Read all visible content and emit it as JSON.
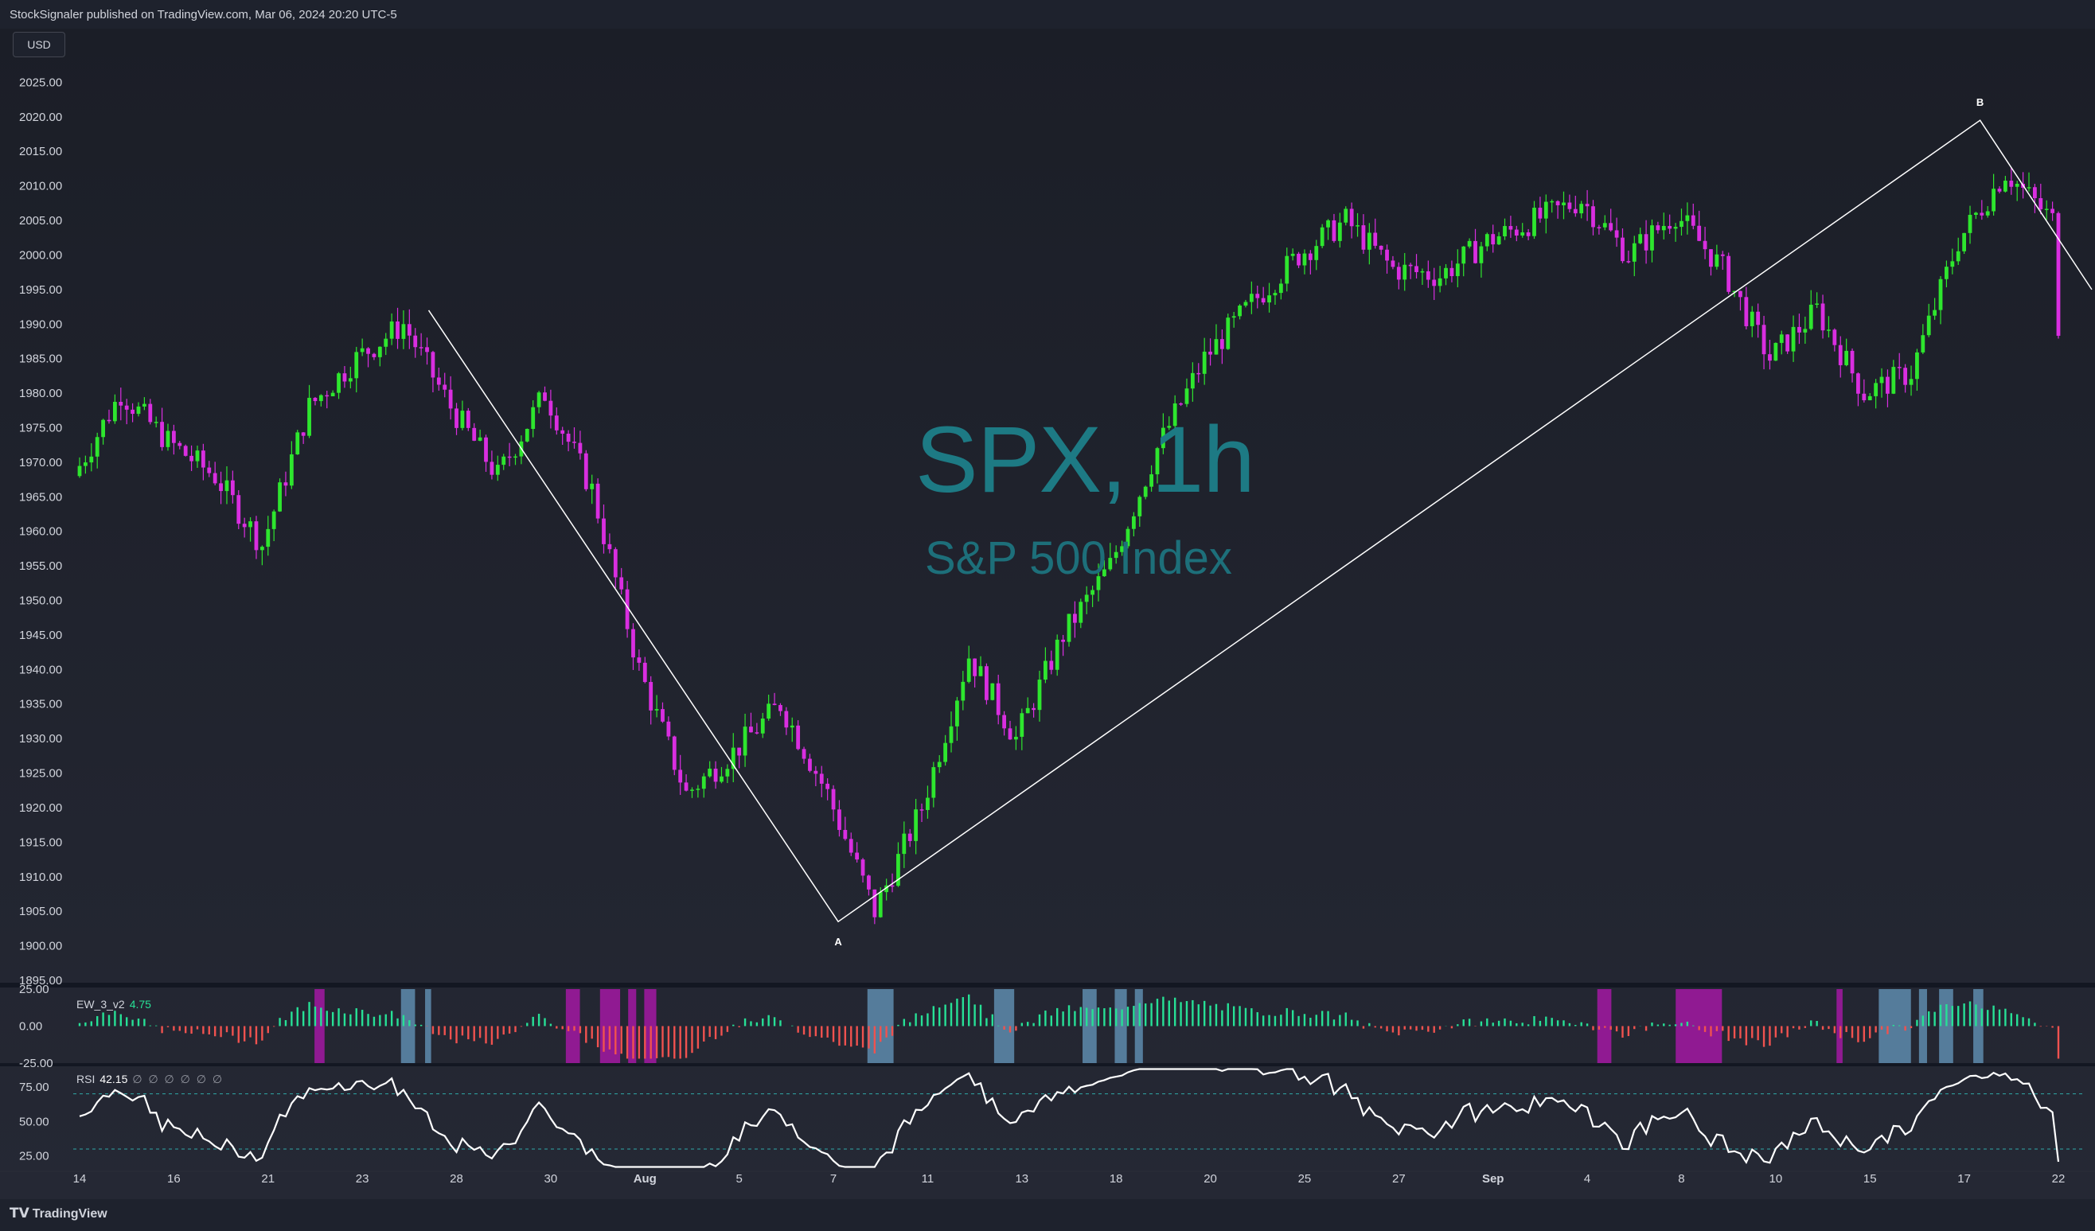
{
  "header": {
    "published_text": "StockSignaler published on TradingView.com, Mar 06, 2024 20:20 UTC-5",
    "currency": "USD"
  },
  "watermark": {
    "symbol_text": "SPX, 1h",
    "name_text": "S&P 500 Index"
  },
  "footer": {
    "logo_text": "TradingView",
    "logo_icon": "tradingview-logo-icon"
  },
  "indicators": {
    "ew": {
      "name": "EW_3_v2",
      "value": "4.75"
    },
    "rsi": {
      "name": "RSI",
      "value": "42.15",
      "extra": "∅ ∅ ∅ ∅ ∅ ∅"
    }
  },
  "colors": {
    "up_candle": "#2ee62e",
    "down_candle": "#d92ee0",
    "background": "#1e222d",
    "wave_line": "#ffffff",
    "watermark": "#1d7a84",
    "osc_positive": "#27e096",
    "osc_negative": "#f0524f",
    "band_purple": "#9c1a9c",
    "band_blue": "#5b86a6",
    "rsi_line": "#ffffff",
    "rsi_bound": "#2fa8a8"
  },
  "chart_data": [
    {
      "type": "candlestick",
      "title": "SPX, 1h",
      "subtitle": "S&P 500 Index",
      "y_unit": "USD",
      "ylim": [
        1895,
        2030
      ],
      "y_ticks": [
        "2025.00",
        "2020.00",
        "2015.00",
        "2010.00",
        "2005.00",
        "2000.00",
        "1995.00",
        "1990.00",
        "1985.00",
        "1980.00",
        "1975.00",
        "1970.00",
        "1965.00",
        "1960.00",
        "1955.00",
        "1950.00",
        "1945.00",
        "1940.00",
        "1935.00",
        "1930.00",
        "1925.00",
        "1920.00",
        "1915.00",
        "1910.00",
        "1905.00",
        "1900.00",
        "1895.00"
      ],
      "x_ticks": [
        "14",
        "16",
        "21",
        "23",
        "28",
        "30",
        "Aug",
        "5",
        "7",
        "11",
        "13",
        "18",
        "20",
        "25",
        "27",
        "Sep",
        "4",
        "8",
        "10",
        "15",
        "17",
        "22"
      ],
      "close_path": [
        {
          "x": "14",
          "y": 1968
        },
        {
          "x": "14",
          "y": 1980
        },
        {
          "x": "16",
          "y": 1973
        },
        {
          "x": "16",
          "y": 1968
        },
        {
          "x": "21",
          "y": 1958
        },
        {
          "x": "21",
          "y": 1978
        },
        {
          "x": "23",
          "y": 1985
        },
        {
          "x": "23",
          "y": 1990
        },
        {
          "x": "28",
          "y": 1978
        },
        {
          "x": "28",
          "y": 1968
        },
        {
          "x": "30",
          "y": 1980
        },
        {
          "x": "30",
          "y": 1966
        },
        {
          "x": "Aug",
          "y": 1940
        },
        {
          "x": "Aug",
          "y": 1922
        },
        {
          "x": "5",
          "y": 1928
        },
        {
          "x": "5",
          "y": 1935
        },
        {
          "x": "7",
          "y": 1922
        },
        {
          "x": "7",
          "y": 1905
        },
        {
          "x": "11",
          "y": 1920
        },
        {
          "x": "11",
          "y": 1942
        },
        {
          "x": "13",
          "y": 1930
        },
        {
          "x": "13",
          "y": 1945
        },
        {
          "x": "18",
          "y": 1955
        },
        {
          "x": "18",
          "y": 1972
        },
        {
          "x": "20",
          "y": 1985
        },
        {
          "x": "20",
          "y": 1993
        },
        {
          "x": "25",
          "y": 2000
        },
        {
          "x": "25",
          "y": 2005
        },
        {
          "x": "27",
          "y": 1998
        },
        {
          "x": "27",
          "y": 1997
        },
        {
          "x": "Sep",
          "y": 2002
        },
        {
          "x": "Sep",
          "y": 2005
        },
        {
          "x": "4",
          "y": 2008
        },
        {
          "x": "4",
          "y": 2000
        },
        {
          "x": "8",
          "y": 2006
        },
        {
          "x": "8",
          "y": 1998
        },
        {
          "x": "10",
          "y": 1985
        },
        {
          "x": "10",
          "y": 1992
        },
        {
          "x": "15",
          "y": 1980
        },
        {
          "x": "15",
          "y": 1983
        },
        {
          "x": "17",
          "y": 2002
        },
        {
          "x": "17",
          "y": 2012
        },
        {
          "x": "22",
          "y": 2005
        },
        {
          "x": "22",
          "y": 1990
        }
      ],
      "wave_labels": [
        {
          "label": "A",
          "near": "7",
          "price": 1903.5
        },
        {
          "label": "B",
          "near": "17",
          "price": 2019.5
        }
      ]
    },
    {
      "type": "bar",
      "name": "EW_3_v2",
      "current_value": 4.75,
      "ylim": [
        -25,
        25
      ],
      "y_ticks": [
        "25.00",
        "0.00",
        "-25.00"
      ]
    },
    {
      "type": "line",
      "name": "RSI",
      "current_value": 42.15,
      "ylim": [
        15,
        90
      ],
      "y_ticks": [
        "75.00",
        "50.00",
        "25.00"
      ],
      "upper_band": 70,
      "lower_band": 30
    }
  ]
}
